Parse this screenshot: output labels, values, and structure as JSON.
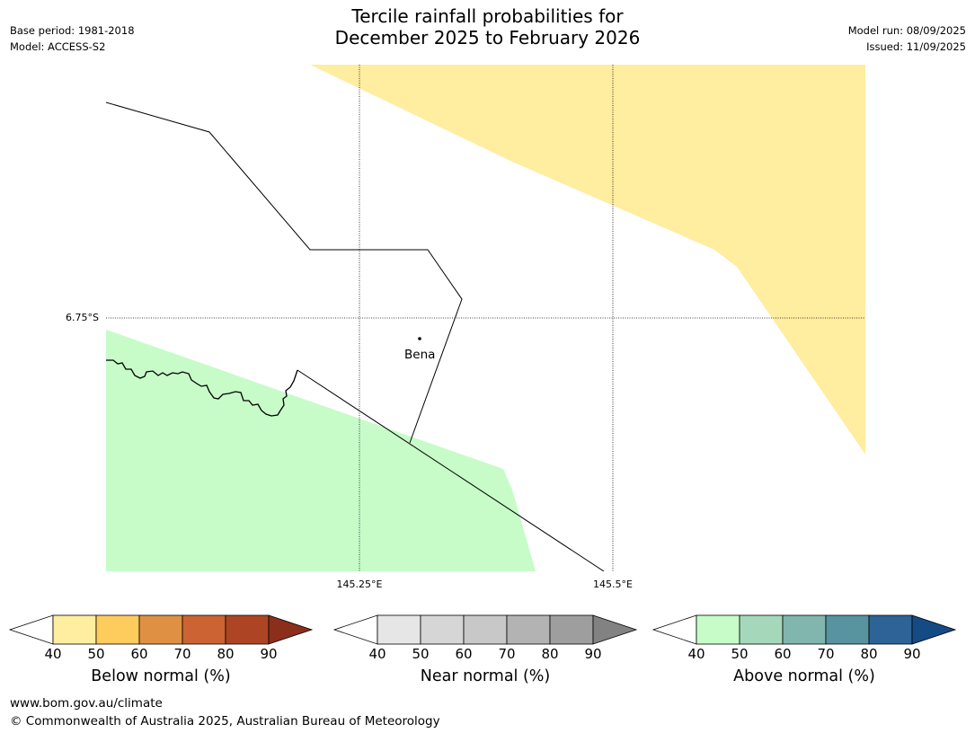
{
  "header": {
    "base_period": "Base period: 1981-2018",
    "model": "Model: ACCESS-S2",
    "title_line1": "Tercile rainfall probabilities for",
    "title_line2": "December 2025 to February 2026",
    "model_run": "Model run: 08/09/2025",
    "issued": "Issued: 11/09/2025"
  },
  "map": {
    "gridlines": {
      "lat_label": "6.75°S",
      "lon_labels": [
        "145.25°E",
        "145.5°E"
      ]
    },
    "place": {
      "name": "Bena"
    },
    "colors": {
      "below_normal_50": "#ffeda0",
      "above_normal_50": "#c7fcc9",
      "boundary": "#000000"
    }
  },
  "colorbars": [
    {
      "title": "Below normal (%)",
      "ticks": [
        "40",
        "50",
        "60",
        "70",
        "80",
        "90"
      ],
      "colors": [
        "#ffffff",
        "#ffeda0",
        "#fecc5c",
        "#e09042",
        "#cc6332",
        "#ad4524",
        "#8b2e1c"
      ]
    },
    {
      "title": "Near normal (%)",
      "ticks": [
        "40",
        "50",
        "60",
        "70",
        "80",
        "90"
      ],
      "colors": [
        "#ffffff",
        "#e6e6e6",
        "#d6d6d6",
        "#c8c8c8",
        "#b3b3b3",
        "#9e9e9e",
        "#828282"
      ]
    },
    {
      "title": "Above normal (%)",
      "ticks": [
        "40",
        "50",
        "60",
        "70",
        "80",
        "90"
      ],
      "colors": [
        "#ffffff",
        "#c7fcc9",
        "#a5d8ba",
        "#80b6ad",
        "#5893a0",
        "#2d6396",
        "#154b85"
      ]
    }
  ],
  "footer": {
    "website": "www.bom.gov.au/climate",
    "copyright": "© Commonwealth of Australia 2025, Australian Bureau of Meteorology"
  }
}
